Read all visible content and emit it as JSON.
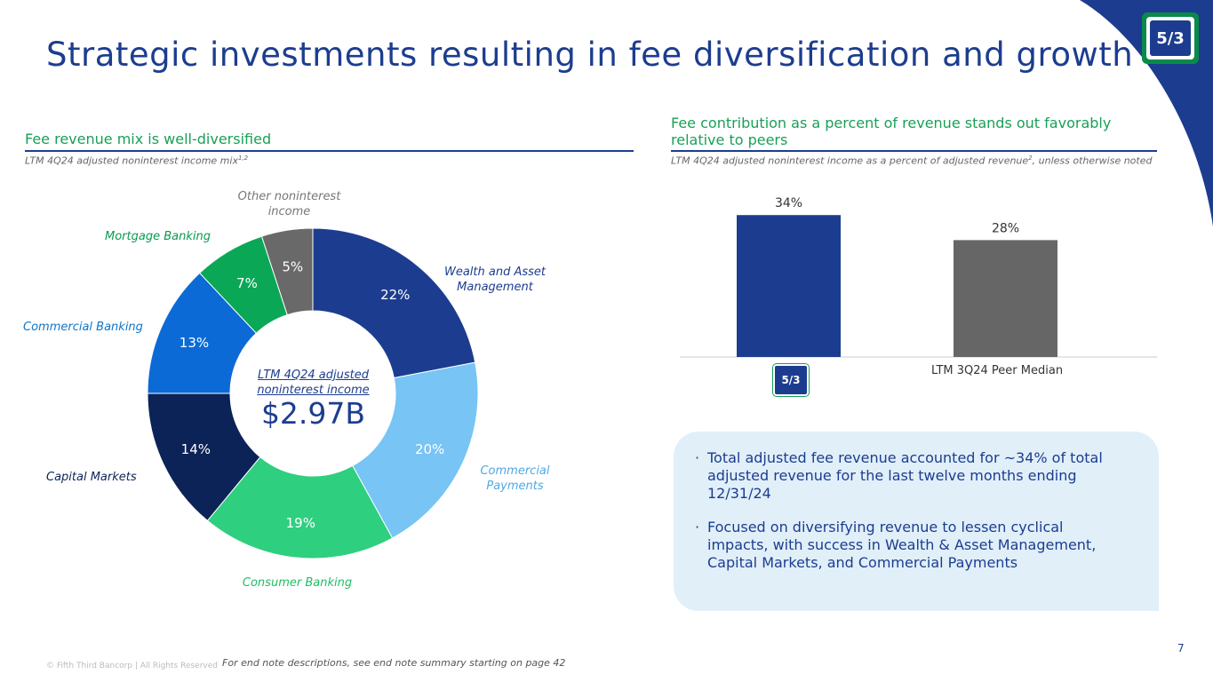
{
  "title": "Strategic investments resulting in fee diversification and growth",
  "logo": {
    "text": "5/3"
  },
  "left_section": {
    "heading": "Fee revenue mix is well-diversified",
    "subnote": "LTM 4Q24 adjusted noninterest income mix",
    "subnote_sup": "1,2",
    "center_label": "LTM 4Q24 adjusted noninterest income",
    "center_value": "$2.97B"
  },
  "right_section": {
    "heading": "Fee contribution as a percent of revenue stands out favorably relative to peers",
    "subnote": "LTM 4Q24 adjusted noninterest income as a percent of adjusted revenue",
    "subnote_sup": "2",
    "subnote_tail": ", unless otherwise noted",
    "peer_caption": "LTM 3Q24 Peer Median",
    "bank_logo_text": "5/3"
  },
  "chart_data": [
    {
      "type": "pie",
      "title": "LTM 4Q24 adjusted noninterest income mix",
      "categories": [
        "Wealth and Asset Management",
        "Commercial Payments",
        "Consumer Banking",
        "Capital Markets",
        "Commercial Banking",
        "Mortgage Banking",
        "Other noninterest income"
      ],
      "values": [
        22,
        20,
        19,
        14,
        13,
        7,
        5
      ],
      "value_labels": [
        "22%",
        "20%",
        "19%",
        "14%",
        "13%",
        "7%",
        "5%"
      ],
      "colors": [
        "#1c3d8f",
        "#77c4f5",
        "#2ecf7e",
        "#0c2358",
        "#0b6ad6",
        "#0aa856",
        "#696969"
      ],
      "label_colors": [
        "#1c3d8f",
        "#4fa9e3",
        "#1fbf66",
        "#0c2358",
        "#1076c8",
        "#0a9a4e",
        "#777777"
      ],
      "inner_radius_ratio": 0.5
    },
    {
      "type": "bar",
      "title": "Fee contribution as a percent of revenue",
      "categories": [
        "Fifth Third",
        "LTM 3Q24 Peer Median"
      ],
      "values": [
        34,
        28
      ],
      "value_labels": [
        "34%",
        "28%"
      ],
      "colors": [
        "#1c3d8f",
        "#666666"
      ],
      "ylim": [
        0,
        40
      ]
    }
  ],
  "callout": {
    "bullets": [
      "Total adjusted fee revenue accounted for ~34% of total adjusted revenue for the last twelve months ending 12/31/24",
      "Focused on diversifying revenue to lessen cyclical impacts, with success in Wealth & Asset Management, Capital Markets, and Commercial Payments"
    ]
  },
  "footer": {
    "copyright": "© Fifth Third Bancorp | All Rights Reserved",
    "note": "For end note descriptions, see end note summary starting on page 42",
    "page_number": "7"
  }
}
